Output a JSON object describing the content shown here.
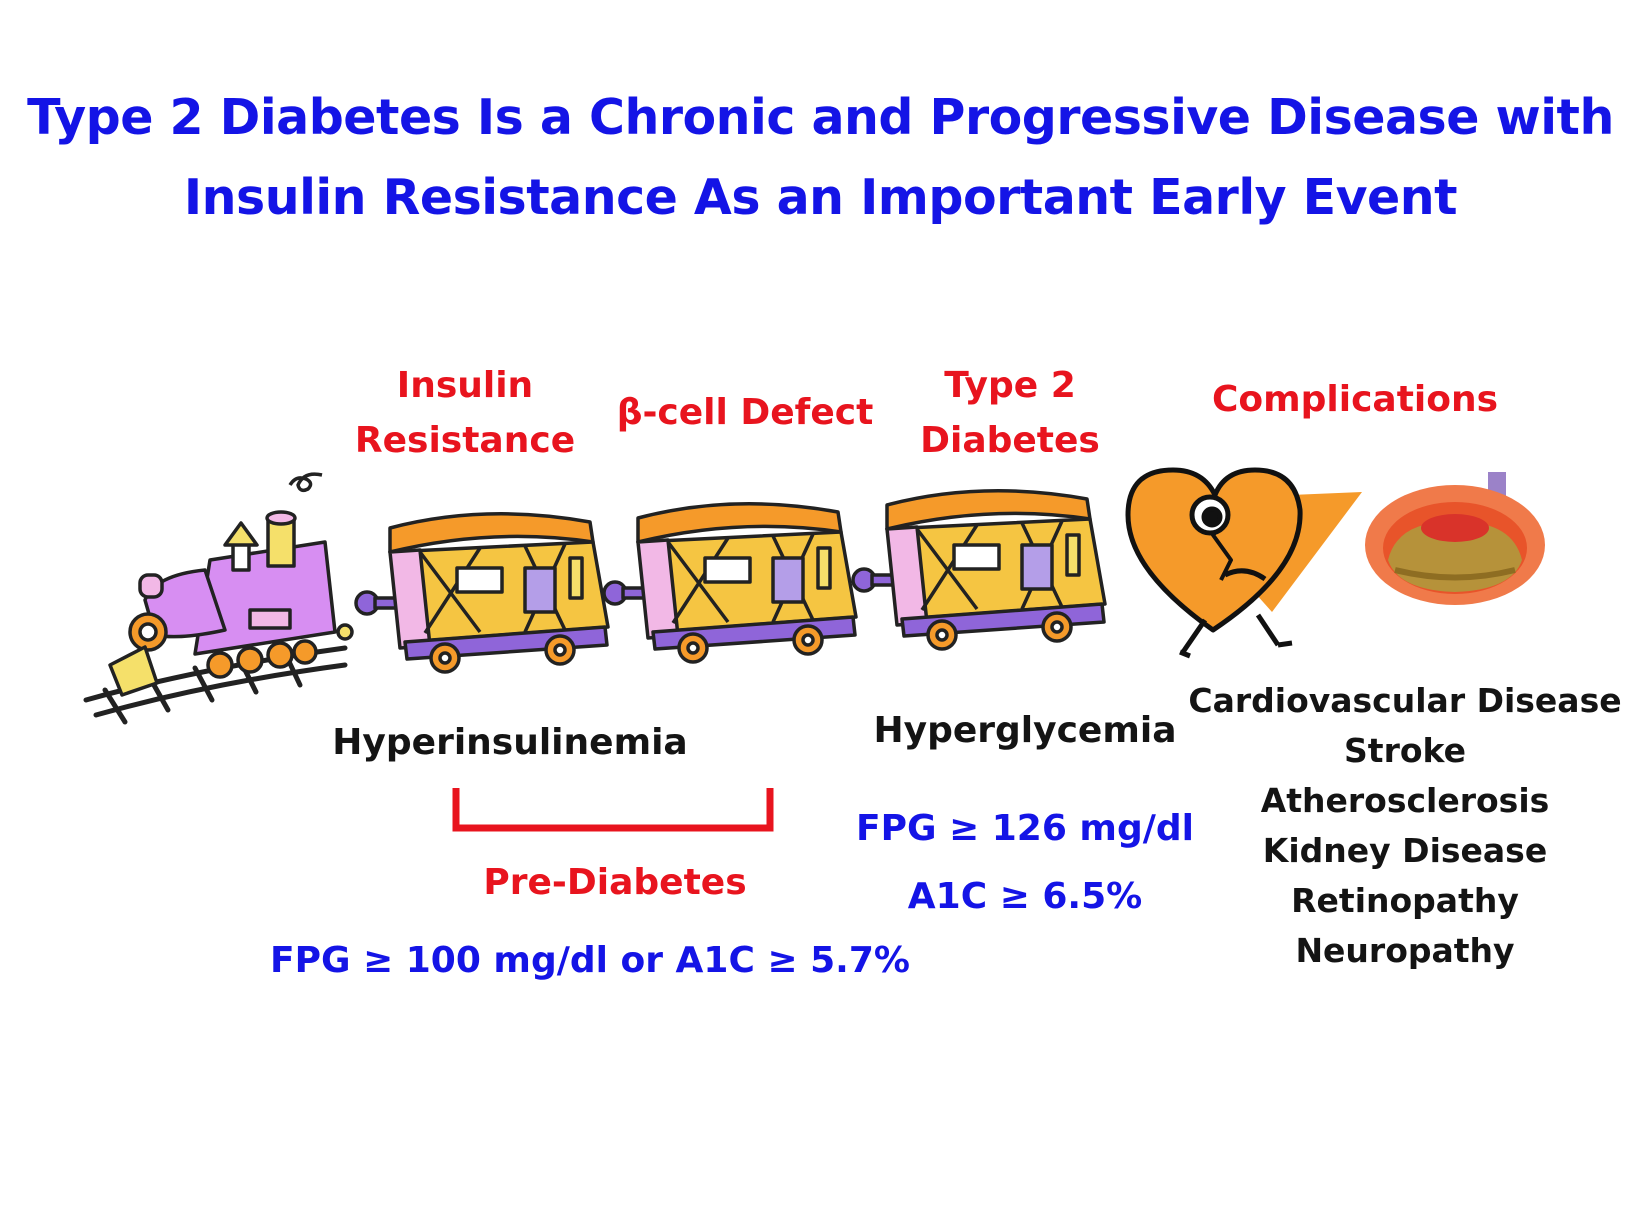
{
  "title": {
    "line1": "Type 2 Diabetes Is a Chronic and Progressive Disease with",
    "line2": "Insulin Resistance As an Important Early Event"
  },
  "stages": {
    "insulin_resistance": [
      "Insulin",
      "Resistance"
    ],
    "beta_cell_defect": "β-cell Defect",
    "type2_diabetes": [
      "Type 2",
      "Diabetes"
    ],
    "complications": "Complications"
  },
  "labels": {
    "hyperinsulinemia": "Hyperinsulinemia",
    "hyperglycemia": "Hyperglycemia",
    "pre_diabetes": "Pre-Diabetes",
    "pre_diabetes_criteria": "FPG ≥ 100 mg/dl or A1C ≥ 5.7%",
    "diabetes_fpg": "FPG ≥ 126 mg/dl",
    "diabetes_a1c": "A1C ≥ 6.5%"
  },
  "complications_list": [
    "Cardiovascular Disease",
    "Stroke",
    "Atherosclerosis",
    "Kidney Disease",
    "Retinopathy",
    "Neuropathy"
  ],
  "icons": {
    "locomotive": "train-locomotive-icon",
    "boxcar": "train-boxcar-icon",
    "heart": "broken-heart-icon",
    "artery": "artery-plaque-icon"
  },
  "colors": {
    "title_blue": "#1414e6",
    "stage_red": "#e8141e",
    "text_dark": "#141414",
    "car_orange": "#f59a2a",
    "car_pink": "#f2b8e6",
    "engine_violet": "#d78ef2"
  }
}
